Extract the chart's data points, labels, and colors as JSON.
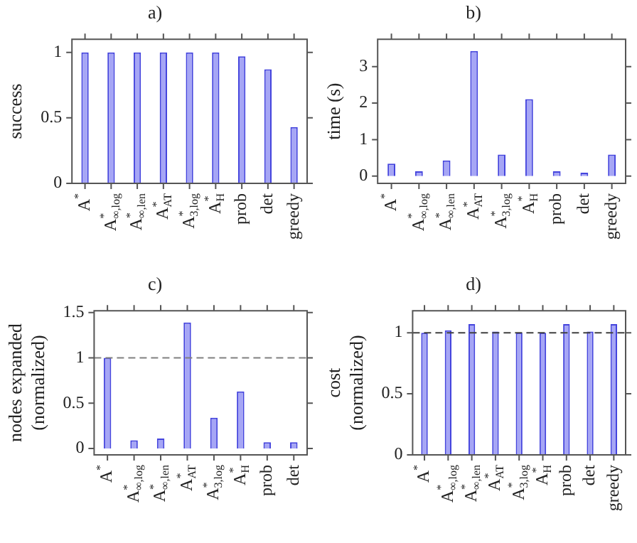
{
  "chart_data": [
    {
      "type": "bar",
      "title": "a)",
      "ylabel": "success",
      "categories": [
        "A$^{*}$",
        "A$^{*}$$_{∞,log}$",
        "A$^{*}$$_{∞,len}$",
        "A$^{*}$$_{AT}$",
        "A$^{*}$$_{3,log}$",
        "A$^{*}$$_{H}$",
        "prob",
        "det",
        "greedy"
      ],
      "values": [
        1,
        1,
        1,
        1,
        1,
        1,
        0.97,
        0.87,
        0.43
      ],
      "color": "#a6a6f5",
      "ylim": [
        0,
        1.1
      ],
      "yticks": [
        0,
        0.5,
        1
      ],
      "grid": false,
      "legend": false
    },
    {
      "type": "bar",
      "title": "b)",
      "ylabel": "time (s)",
      "categories": [
        "A$^{*}$",
        "A$^{*}$$_{∞,log}$",
        "A$^{*}$$_{∞,len}$",
        "A$^{*}$$_{AT}$",
        "A$^{*}$$_{3,log}$",
        "A$^{*}$$_{H}$",
        "prob",
        "det",
        "greedy"
      ],
      "values": [
        0.34,
        0.13,
        0.43,
        3.43,
        0.59,
        2.11,
        0.13,
        0.09,
        0.59
      ],
      "color": "#a6a6f5",
      "ylim": [
        -0.2,
        3.75
      ],
      "yticks": [
        0,
        1,
        2,
        3
      ],
      "grid": false,
      "legend": false
    },
    {
      "type": "bar",
      "title": "c)",
      "ylabel": "nodes expanded\n(normalized)",
      "categories": [
        "A$^{*}$",
        "A$^{*}$$_{∞,log}$",
        "A$^{*}$$_{∞,len}$",
        "A$^{*}$$_{AT}$",
        "A$^{*}$$_{3,log}$",
        "A$^{*}$$_{H}$",
        "prob",
        "det"
      ],
      "values": [
        1,
        0.09,
        0.11,
        1.39,
        0.34,
        0.63,
        0.07,
        0.07
      ],
      "color": "#a6a6f5",
      "ylim": [
        -0.07,
        1.52
      ],
      "yticks": [
        0,
        0.5,
        1,
        1.5
      ],
      "grid": false,
      "legend": false,
      "ref_lines": [
        {
          "axis": "y",
          "value": 1,
          "color": "#808080",
          "line_style": "dashed"
        }
      ]
    },
    {
      "type": "bar",
      "title": "d)",
      "ylabel": "cost\n(normalized)",
      "categories": [
        "A$^{*}$",
        "A$^{*}$$_{∞,log}$",
        "A$^{*}$$_{∞,len}$",
        "A$^{*}$$_{AT}$",
        "A$^{*}$$_{3,log}$",
        "A$^{*}$$_{H}$",
        "prob",
        "det",
        "greedy"
      ],
      "values": [
        1,
        1.02,
        1.07,
        1.01,
        1,
        1,
        1.07,
        1.01,
        1.07
      ],
      "color": "#a6a6f5",
      "ylim": [
        0,
        1.18
      ],
      "yticks": [
        0,
        0.5,
        1
      ],
      "grid": false,
      "legend": false,
      "ref_lines": [
        {
          "axis": "y",
          "value": 1,
          "color": "#404040",
          "line_style": "dashed"
        }
      ]
    }
  ]
}
